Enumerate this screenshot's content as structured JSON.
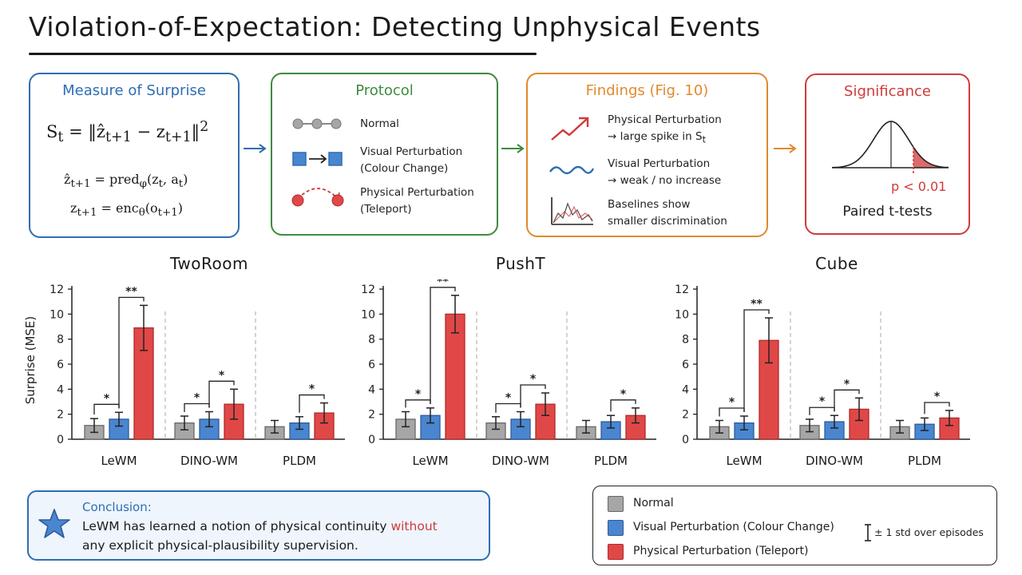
{
  "title": "Violation-of-Expectation: Detecting Unphysical Events",
  "colors": {
    "blue": "#2e6db4",
    "green": "#3d8b3d",
    "orange": "#e08a2c",
    "red": "#d03a3a",
    "normal_fill": "#a6a6a6",
    "visual_fill": "#4a86d0",
    "physical_fill": "#e04848"
  },
  "cards": {
    "measure": {
      "title": "Measure of Surprise",
      "formula_main": "S<sub>t</sub> = ‖ẑ<sub>t+1</sub> − z<sub>t+1</sub>‖<sup>2</sup>",
      "formula_pred": "ẑ<sub>t+1</sub> = pred<sub>φ</sub>(z<sub>t</sub>, a<sub>t</sub>)",
      "formula_enc": "z<sub>t+1</sub> = enc<sub>θ</sub>(o<sub>t+1</sub>)"
    },
    "protocol": {
      "title": "Protocol",
      "items": [
        {
          "label": "Normal",
          "icon": "normal-dots-icon"
        },
        {
          "label": "Visual Perturbation",
          "label2": "(Colour Change)",
          "icon": "colour-change-icon"
        },
        {
          "label": "Physical Perturbation",
          "label2": "(Teleport)",
          "icon": "teleport-icon"
        }
      ]
    },
    "findings": {
      "title": "Findings (Fig. 10)",
      "items": [
        {
          "line1": "Physical Perturbation",
          "line2": "→ large spike in S<sub>t</sub>",
          "icon": "spike-arrow-icon"
        },
        {
          "line1": "Visual Perturbation",
          "line2": "→ weak / no increase",
          "icon": "wave-icon"
        },
        {
          "line1": "Baselines show",
          "line2": "smaller discrimination",
          "icon": "baseline-chart-icon"
        }
      ]
    },
    "significance": {
      "title": "Significance",
      "p_value": "p < 0.01",
      "test": "Paired t-tests"
    }
  },
  "chart_data": [
    {
      "type": "bar",
      "title": "TwoRoom",
      "ylabel": "Surprise (MSE)",
      "ylim": [
        0,
        12
      ],
      "yticks": [
        0,
        2,
        4,
        6,
        8,
        10,
        12
      ],
      "categories": [
        "LeWM",
        "DINO-WM",
        "PLDM"
      ],
      "series": [
        {
          "name": "Normal",
          "values": [
            1.1,
            1.3,
            1.0
          ],
          "errors": [
            0.55,
            0.55,
            0.5
          ]
        },
        {
          "name": "Visual Perturbation (Colour Change)",
          "values": [
            1.6,
            1.6,
            1.3
          ],
          "errors": [
            0.55,
            0.6,
            0.5
          ]
        },
        {
          "name": "Physical Perturbation (Teleport)",
          "values": [
            8.9,
            2.8,
            2.1
          ],
          "errors": [
            1.8,
            1.2,
            0.8
          ]
        }
      ],
      "significance": [
        {
          "group": 0,
          "from": 0,
          "to": 1,
          "label": "*"
        },
        {
          "group": 0,
          "from": 1,
          "to": 2,
          "label": "**"
        },
        {
          "group": 1,
          "from": 0,
          "to": 1,
          "label": "*"
        },
        {
          "group": 1,
          "from": 1,
          "to": 2,
          "label": "*"
        },
        {
          "group": 2,
          "from": 1,
          "to": 2,
          "label": "*"
        }
      ]
    },
    {
      "type": "bar",
      "title": "PushT",
      "ylim": [
        0,
        12
      ],
      "yticks": [
        0,
        2,
        4,
        6,
        8,
        10,
        12
      ],
      "categories": [
        "LeWM",
        "DINO-WM",
        "PLDM"
      ],
      "series": [
        {
          "name": "Normal",
          "values": [
            1.6,
            1.3,
            1.0
          ],
          "errors": [
            0.6,
            0.5,
            0.5
          ]
        },
        {
          "name": "Visual Perturbation (Colour Change)",
          "values": [
            1.9,
            1.6,
            1.4
          ],
          "errors": [
            0.6,
            0.6,
            0.5
          ]
        },
        {
          "name": "Physical Perturbation (Teleport)",
          "values": [
            10.0,
            2.8,
            1.9
          ],
          "errors": [
            1.5,
            0.9,
            0.6
          ]
        }
      ],
      "significance": [
        {
          "group": 0,
          "from": 0,
          "to": 1,
          "label": "*"
        },
        {
          "group": 0,
          "from": 1,
          "to": 2,
          "label": "**"
        },
        {
          "group": 1,
          "from": 0,
          "to": 1,
          "label": "*"
        },
        {
          "group": 1,
          "from": 1,
          "to": 2,
          "label": "*"
        },
        {
          "group": 2,
          "from": 1,
          "to": 2,
          "label": "*"
        }
      ]
    },
    {
      "type": "bar",
      "title": "Cube",
      "ylim": [
        0,
        12
      ],
      "yticks": [
        0,
        2,
        4,
        6,
        8,
        10,
        12
      ],
      "categories": [
        "LeWM",
        "DINO-WM",
        "PLDM"
      ],
      "series": [
        {
          "name": "Normal",
          "values": [
            1.0,
            1.1,
            1.0
          ],
          "errors": [
            0.5,
            0.5,
            0.5
          ]
        },
        {
          "name": "Visual Perturbation (Colour Change)",
          "values": [
            1.3,
            1.4,
            1.2
          ],
          "errors": [
            0.55,
            0.5,
            0.5
          ]
        },
        {
          "name": "Physical Perturbation (Teleport)",
          "values": [
            7.9,
            2.4,
            1.7
          ],
          "errors": [
            1.8,
            0.9,
            0.6
          ]
        }
      ],
      "significance": [
        {
          "group": 0,
          "from": 0,
          "to": 1,
          "label": "*"
        },
        {
          "group": 0,
          "from": 1,
          "to": 2,
          "label": "**"
        },
        {
          "group": 1,
          "from": 0,
          "to": 1,
          "label": "*"
        },
        {
          "group": 1,
          "from": 1,
          "to": 2,
          "label": "*"
        },
        {
          "group": 2,
          "from": 1,
          "to": 2,
          "label": "*"
        }
      ]
    }
  ],
  "conclusion": {
    "heading": "Conclusion:",
    "line1_prefix": "LeWM has learned a notion of physical continuity ",
    "line1_highlight": "without",
    "line2": "any explicit physical-plausibility supervision."
  },
  "legend": {
    "items": [
      "Normal",
      "Visual Perturbation (Colour Change)",
      "Physical Perturbation (Teleport)"
    ],
    "error_note": "± 1 std over episodes"
  }
}
